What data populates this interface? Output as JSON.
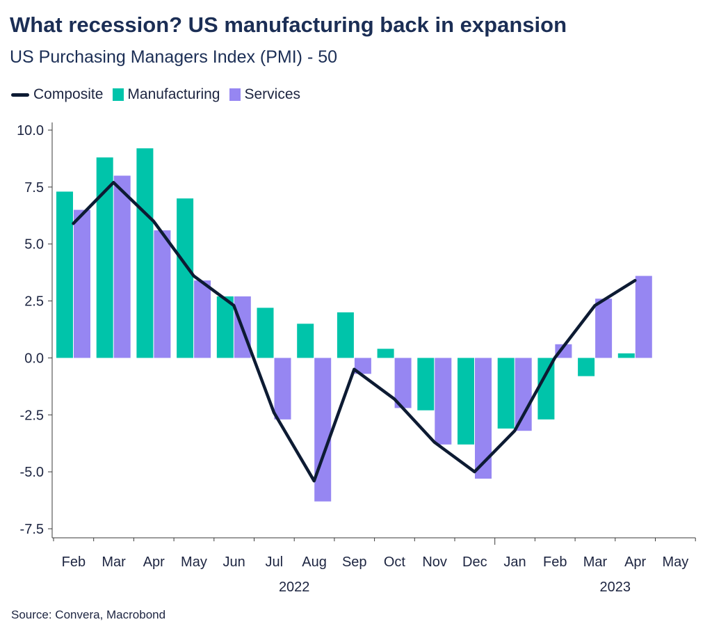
{
  "chart_data": {
    "type": "bar",
    "title": "What recession? US manufacturing back in expansion",
    "subtitle": "US Purchasing Managers Index (PMI) - 50",
    "categories": [
      "Feb",
      "Mar",
      "Apr",
      "May",
      "Jun",
      "Jul",
      "Aug",
      "Sep",
      "Oct",
      "Nov",
      "Dec",
      "Jan",
      "Feb",
      "Mar",
      "Apr",
      "May"
    ],
    "year_labels": [
      {
        "label": "2022",
        "category_index": 5.5
      },
      {
        "label": "2023",
        "category_index": 13.5
      }
    ],
    "series": [
      {
        "name": "Manufacturing",
        "kind": "bar",
        "color": "#00c4aa",
        "values": [
          7.3,
          8.8,
          9.2,
          7.0,
          2.7,
          2.2,
          1.5,
          2.0,
          0.4,
          -2.3,
          -3.8,
          -3.1,
          -2.7,
          -0.8,
          0.2,
          null
        ]
      },
      {
        "name": "Services",
        "kind": "bar",
        "color": "#9686f2",
        "values": [
          6.5,
          8.0,
          5.6,
          3.4,
          2.7,
          -2.7,
          -6.3,
          -0.7,
          -2.2,
          -3.8,
          -5.3,
          -3.2,
          0.6,
          2.6,
          3.6,
          null
        ]
      },
      {
        "name": "Composite",
        "kind": "line",
        "color": "#0d1b33",
        "values": [
          5.9,
          7.7,
          6.0,
          3.6,
          2.3,
          -2.4,
          -5.4,
          -0.5,
          -1.8,
          -3.7,
          -5.0,
          -3.2,
          0.0,
          2.3,
          3.4,
          null
        ]
      }
    ],
    "ylim": [
      -8.0,
      10.5
    ],
    "yticks": [
      "10.0",
      "7.5",
      "5.0",
      "2.5",
      "0.0",
      "-2.5",
      "-5.0",
      "-7.5"
    ],
    "ytick_values": [
      10.0,
      7.5,
      5.0,
      2.5,
      0.0,
      -2.5,
      -5.0,
      -7.5
    ],
    "xlabel": "",
    "ylabel": "",
    "grid": false,
    "legend_position": "top-left",
    "source": "Source: Convera, Macrobond"
  }
}
